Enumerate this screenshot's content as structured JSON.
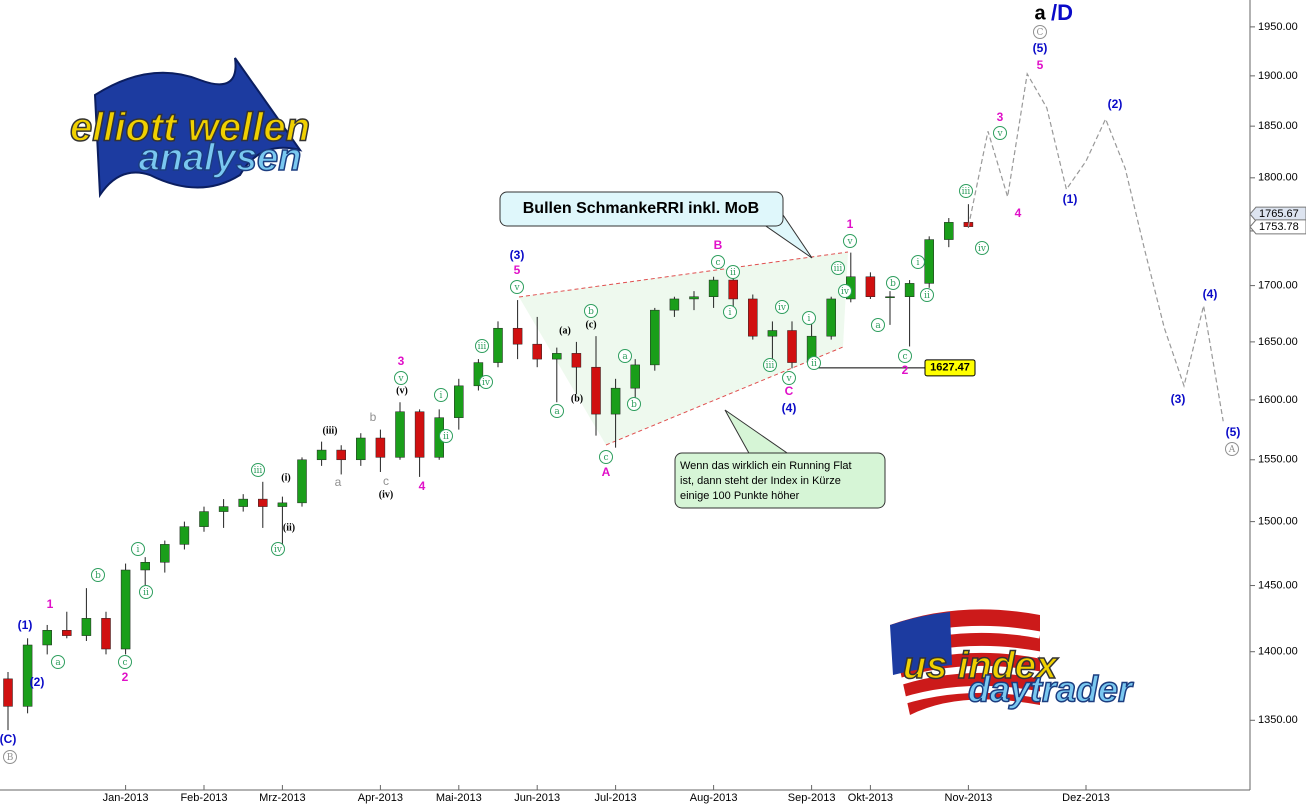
{
  "chart_data": {
    "type": "candlestick",
    "log_scale": true,
    "up_color": "#1a9e1a",
    "down_color": "#d01010",
    "categories": [
      null,
      null,
      null,
      null,
      null,
      null,
      "Jan-2013",
      null,
      null,
      null,
      "Feb-2013",
      null,
      null,
      null,
      "Mrz-2013",
      null,
      null,
      null,
      null,
      "Apr-2013",
      null,
      null,
      null,
      "Mai-2013",
      null,
      null,
      null,
      "Jun-2013",
      null,
      null,
      null,
      "Jul-2013",
      null,
      null,
      null,
      null,
      "Aug-2013",
      null,
      null,
      null,
      null,
      "Sep-2013",
      null,
      null,
      "Okt-2013",
      null,
      null,
      null,
      null,
      "Nov-2013",
      null,
      null,
      null,
      null,
      null,
      "Dez-2013",
      null,
      null,
      null,
      null,
      null,
      null,
      null,
      null
    ],
    "open": [
      1380,
      1360,
      1405,
      1416,
      1412,
      1425,
      1402,
      1462,
      1468,
      1482,
      1496,
      1508,
      1512,
      1518,
      1512,
      1515,
      1550,
      1558,
      1550,
      1568,
      1552,
      1590,
      1552,
      1585,
      1612,
      1632,
      1662,
      1648,
      1635,
      1640,
      1628,
      1588,
      1610,
      1630,
      1678,
      1688,
      1690,
      1705,
      1688,
      1655,
      1660,
      1632,
      1655,
      1688,
      1708,
      1690,
      1690,
      1702,
      1742,
      1758,
      null,
      null,
      null,
      null,
      null,
      null,
      null,
      null,
      null,
      null,
      null,
      null,
      null,
      null
    ],
    "high": [
      1385,
      1410,
      1420,
      1430,
      1448,
      1430,
      1467,
      1472,
      1485,
      1500,
      1512,
      1518,
      1522,
      1532,
      1520,
      1552,
      1565,
      1562,
      1572,
      1575,
      1598,
      1592,
      1592,
      1618,
      1635,
      1668,
      1687,
      1672,
      1645,
      1650,
      1655,
      1618,
      1635,
      1680,
      1690,
      1695,
      1708,
      1708,
      1692,
      1668,
      1668,
      1668,
      1690,
      1730,
      1712,
      1695,
      1705,
      1745,
      1762,
      1775,
      null,
      null,
      null,
      null,
      null,
      null,
      null,
      null,
      null,
      null,
      null,
      null,
      null,
      null
    ],
    "low": [
      1343,
      1355,
      1398,
      1410,
      1408,
      1398,
      1398,
      1450,
      1460,
      1478,
      1492,
      1495,
      1508,
      1495,
      1482,
      1512,
      1545,
      1538,
      1545,
      1540,
      1550,
      1536,
      1550,
      1575,
      1608,
      1628,
      1635,
      1628,
      1598,
      1605,
      1570,
      1560,
      1602,
      1625,
      1672,
      1678,
      1680,
      1680,
      1652,
      1628,
      1627,
      1630,
      1652,
      1685,
      1688,
      1665,
      1646,
      1698,
      1735,
      1753,
      null,
      null,
      null,
      null,
      null,
      null,
      null,
      null,
      null,
      null,
      null,
      null,
      null,
      null
    ],
    "close": [
      1360,
      1405,
      1416,
      1412,
      1425,
      1402,
      1462,
      1468,
      1482,
      1496,
      1508,
      1512,
      1518,
      1512,
      1515,
      1550,
      1558,
      1550,
      1568,
      1552,
      1590,
      1552,
      1585,
      1612,
      1632,
      1662,
      1648,
      1635,
      1640,
      1628,
      1588,
      1610,
      1630,
      1678,
      1688,
      1690,
      1705,
      1688,
      1655,
      1660,
      1632,
      1655,
      1688,
      1708,
      1690,
      1690,
      1702,
      1742,
      1758,
      1754,
      null,
      null,
      null,
      null,
      null,
      null,
      null,
      null,
      null,
      null,
      null,
      null,
      null,
      null
    ],
    "projection": {
      "color": "#999999",
      "values": [
        null,
        null,
        null,
        null,
        null,
        null,
        null,
        null,
        null,
        null,
        null,
        null,
        null,
        null,
        null,
        null,
        null,
        null,
        null,
        null,
        null,
        null,
        null,
        null,
        null,
        null,
        null,
        null,
        null,
        null,
        null,
        null,
        null,
        null,
        null,
        null,
        null,
        null,
        null,
        null,
        null,
        null,
        null,
        null,
        null,
        null,
        null,
        null,
        null,
        1754,
        1845,
        1782,
        1902,
        1868,
        1789,
        1816,
        1857,
        1809,
        1732,
        1662,
        1612,
        1682,
        1582,
        null
      ]
    },
    "ylim": [
      1301,
      1978
    ],
    "yticks": [
      {
        "value": 1350,
        "label": "1350.00"
      },
      {
        "value": 1400,
        "label": "1400.00"
      },
      {
        "value": 1450,
        "label": "1450.00"
      },
      {
        "value": 1500,
        "label": "1500.00"
      },
      {
        "value": 1550,
        "label": "1550.00"
      },
      {
        "value": 1600,
        "label": "1600.00"
      },
      {
        "value": 1650,
        "label": "1650.00"
      },
      {
        "value": 1700,
        "label": "1700.00"
      },
      {
        "value": 1750,
        "label": "1750.00"
      },
      {
        "value": 1800,
        "label": "1800.00"
      },
      {
        "value": 1850,
        "label": "1850.00"
      },
      {
        "value": 1900,
        "label": "1900.00"
      },
      {
        "value": 1950,
        "label": "1950.00"
      }
    ],
    "price_labels": [
      1765.67,
      1753.78
    ],
    "level": 1627.47,
    "callouts": [
      {
        "lines": [
          "Bullen SchmankeRRI inkl. MoB"
        ]
      },
      {
        "lines": [
          "Wenn das wirklich ein Running Flat",
          "ist, dann steht der Index in Kürze",
          "einige 100 Punkte höher"
        ]
      }
    ],
    "logos": [
      {
        "lines": [
          "elliott wellen",
          "analysen"
        ]
      },
      {
        "lines": [
          "us index",
          "daytrader"
        ]
      }
    ],
    "annotations": [
      {
        "text": "(C)",
        "color": "#0a0ac8"
      },
      {
        "text": "B",
        "color": "#909090",
        "circled": true
      },
      {
        "text": "(1)",
        "color": "#0a0ac8"
      },
      {
        "text": "(2)",
        "color": "#0a0ac8"
      },
      {
        "text": "1",
        "color": "#e010c8"
      },
      {
        "text": "a",
        "color": "#2e9e5e",
        "circled": true
      },
      {
        "text": "b",
        "color": "#2e9e5e",
        "circled": true
      },
      {
        "text": "c",
        "color": "#2e9e5e",
        "circled": true
      },
      {
        "text": "2",
        "color": "#e010c8"
      },
      {
        "text": "i",
        "color": "#2e9e5e",
        "circled": true
      },
      {
        "text": "ii",
        "color": "#2e9e5e",
        "circled": true
      },
      {
        "text": "iii",
        "color": "#2e9e5e",
        "circled": true
      },
      {
        "text": "iv",
        "color": "#2e9e5e",
        "circled": true
      },
      {
        "text": "(i)",
        "color": "#000000"
      },
      {
        "text": "(ii)",
        "color": "#000000"
      },
      {
        "text": "(iii)",
        "color": "#000000"
      },
      {
        "text": "a",
        "color": "#909090"
      },
      {
        "text": "b",
        "color": "#909090"
      },
      {
        "text": "c",
        "color": "#909090"
      },
      {
        "text": "(iv)",
        "color": "#000000"
      },
      {
        "text": "3",
        "color": "#e010c8"
      },
      {
        "text": "v",
        "color": "#2e9e5e",
        "circled": true
      },
      {
        "text": "(v)",
        "color": "#000000"
      },
      {
        "text": "4",
        "color": "#e010c8"
      },
      {
        "text": "i",
        "color": "#2e9e5e",
        "circled": true
      },
      {
        "text": "ii",
        "color": "#2e9e5e",
        "circled": true
      },
      {
        "text": "iii",
        "color": "#2e9e5e",
        "circled": true
      },
      {
        "text": "iv",
        "color": "#2e9e5e",
        "circled": true
      },
      {
        "text": "(3)",
        "color": "#0a0ac8"
      },
      {
        "text": "5",
        "color": "#e010c8"
      },
      {
        "text": "v",
        "color": "#2e9e5e",
        "circled": true
      },
      {
        "text": "(a)",
        "color": "#000000"
      },
      {
        "text": "(b)",
        "color": "#000000"
      },
      {
        "text": "(c)",
        "color": "#000000"
      },
      {
        "text": "a",
        "color": "#2e9e5e",
        "circled": true
      },
      {
        "text": "b",
        "color": "#2e9e5e",
        "circled": true
      },
      {
        "text": "c",
        "color": "#2e9e5e",
        "circled": true
      },
      {
        "text": "A",
        "color": "#e010c8"
      },
      {
        "text": "a",
        "color": "#2e9e5e",
        "circled": true
      },
      {
        "text": "b",
        "color": "#2e9e5e",
        "circled": true
      },
      {
        "text": "B",
        "color": "#e010c8"
      },
      {
        "text": "c",
        "color": "#2e9e5e",
        "circled": true
      },
      {
        "text": "ii",
        "color": "#2e9e5e",
        "circled": true
      },
      {
        "text": "i",
        "color": "#2e9e5e",
        "circled": true
      },
      {
        "text": "iv",
        "color": "#2e9e5e",
        "circled": true
      },
      {
        "text": "iii",
        "color": "#2e9e5e",
        "circled": true
      },
      {
        "text": "v",
        "color": "#2e9e5e",
        "circled": true
      },
      {
        "text": "C",
        "color": "#e010c8"
      },
      {
        "text": "(4)",
        "color": "#0a0ac8"
      },
      {
        "text": "i",
        "color": "#2e9e5e",
        "circled": true
      },
      {
        "text": "ii",
        "color": "#2e9e5e",
        "circled": true
      },
      {
        "text": "iii",
        "color": "#2e9e5e",
        "circled": true
      },
      {
        "text": "iv",
        "color": "#2e9e5e",
        "circled": true
      },
      {
        "text": "1",
        "color": "#e010c8"
      },
      {
        "text": "v",
        "color": "#2e9e5e",
        "circled": true
      },
      {
        "text": "a",
        "color": "#2e9e5e",
        "circled": true
      },
      {
        "text": "b",
        "color": "#2e9e5e",
        "circled": true
      },
      {
        "text": "c",
        "color": "#2e9e5e",
        "circled": true
      },
      {
        "text": "2",
        "color": "#e010c8"
      },
      {
        "text": "i",
        "color": "#2e9e5e",
        "circled": true
      },
      {
        "text": "ii",
        "color": "#2e9e5e",
        "circled": true
      },
      {
        "text": "iii",
        "color": "#2e9e5e",
        "circled": true
      },
      {
        "text": "iv",
        "color": "#2e9e5e",
        "circled": true
      },
      {
        "text": "3",
        "color": "#e010c8"
      },
      {
        "text": "v",
        "color": "#2e9e5e",
        "circled": true
      },
      {
        "text": "4",
        "color": "#e010c8"
      },
      {
        "text": "(5)",
        "color": "#0a0ac8"
      },
      {
        "text": "5",
        "color": "#e010c8"
      },
      {
        "text": "(1)",
        "color": "#0a0ac8"
      },
      {
        "text": "(2)",
        "color": "#0a0ac8"
      },
      {
        "text": "(3)",
        "color": "#0a0ac8"
      },
      {
        "text": "(4)",
        "color": "#0a0ac8"
      },
      {
        "text": "(5)",
        "color": "#0a0ac8"
      },
      {
        "text": "A",
        "color": "#909090",
        "circled": true
      },
      {
        "text": "a",
        "color": "#000000"
      },
      {
        "text": "C",
        "color": "#909090",
        "circled": true
      },
      {
        "text": "/D",
        "color": "#0a0ac8"
      }
    ]
  }
}
